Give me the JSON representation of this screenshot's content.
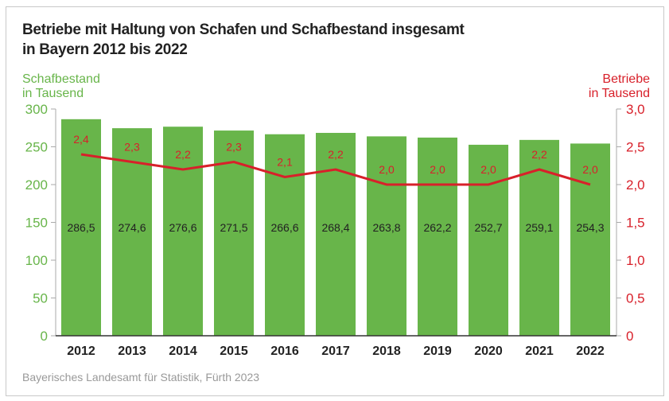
{
  "title_line1": "Betriebe mit Haltung von Schafen und Schafbestand insgesamt",
  "title_line2": "in Bayern 2012 bis 2022",
  "source": "Bayerisches Landesamt für Statistik, Fürth 2023",
  "colors": {
    "bar": "#68b54a",
    "line": "#d8202a",
    "left_axis": "#68b54a",
    "right_axis": "#d8202a"
  },
  "chart_data": {
    "type": "bar+line",
    "categories": [
      "2012",
      "2013",
      "2014",
      "2015",
      "2016",
      "2017",
      "2018",
      "2019",
      "2020",
      "2021",
      "2022"
    ],
    "series": [
      {
        "name": "Schafbestand in Tausend",
        "type": "bar",
        "axis": "left",
        "values": [
          286.5,
          274.6,
          276.6,
          271.5,
          266.6,
          268.4,
          263.8,
          262.2,
          252.7,
          259.1,
          254.3
        ],
        "labels": [
          "286,5",
          "274,6",
          "276,6",
          "271,5",
          "266,6",
          "268,4",
          "263,8",
          "262,2",
          "252,7",
          "259,1",
          "254,3"
        ]
      },
      {
        "name": "Betriebe in Tausend",
        "type": "line",
        "axis": "right",
        "values": [
          2.4,
          2.3,
          2.2,
          2.3,
          2.1,
          2.2,
          2.0,
          2.0,
          2.0,
          2.2,
          2.0
        ],
        "labels": [
          "2,4",
          "2,3",
          "2,2",
          "2,3",
          "2,1",
          "2,2",
          "2,0",
          "2,0",
          "2,0",
          "2,2",
          "2,0"
        ]
      }
    ],
    "left_axis": {
      "label_line1": "Schafbestand",
      "label_line2": "in Tausend",
      "range": [
        0,
        300
      ],
      "ticks": [
        0,
        50,
        100,
        150,
        200,
        250,
        300
      ],
      "tick_labels": [
        "0",
        "50",
        "100",
        "150",
        "200",
        "250",
        "300"
      ]
    },
    "right_axis": {
      "label_line1": "Betriebe",
      "label_line2": "in Tausend",
      "range": [
        0,
        3
      ],
      "ticks": [
        0,
        0.5,
        1,
        1.5,
        2,
        2.5,
        3
      ],
      "tick_labels": [
        "0",
        "0,5",
        "1,0",
        "1,5",
        "2,0",
        "2,5",
        "3,0"
      ]
    },
    "grid": false
  }
}
